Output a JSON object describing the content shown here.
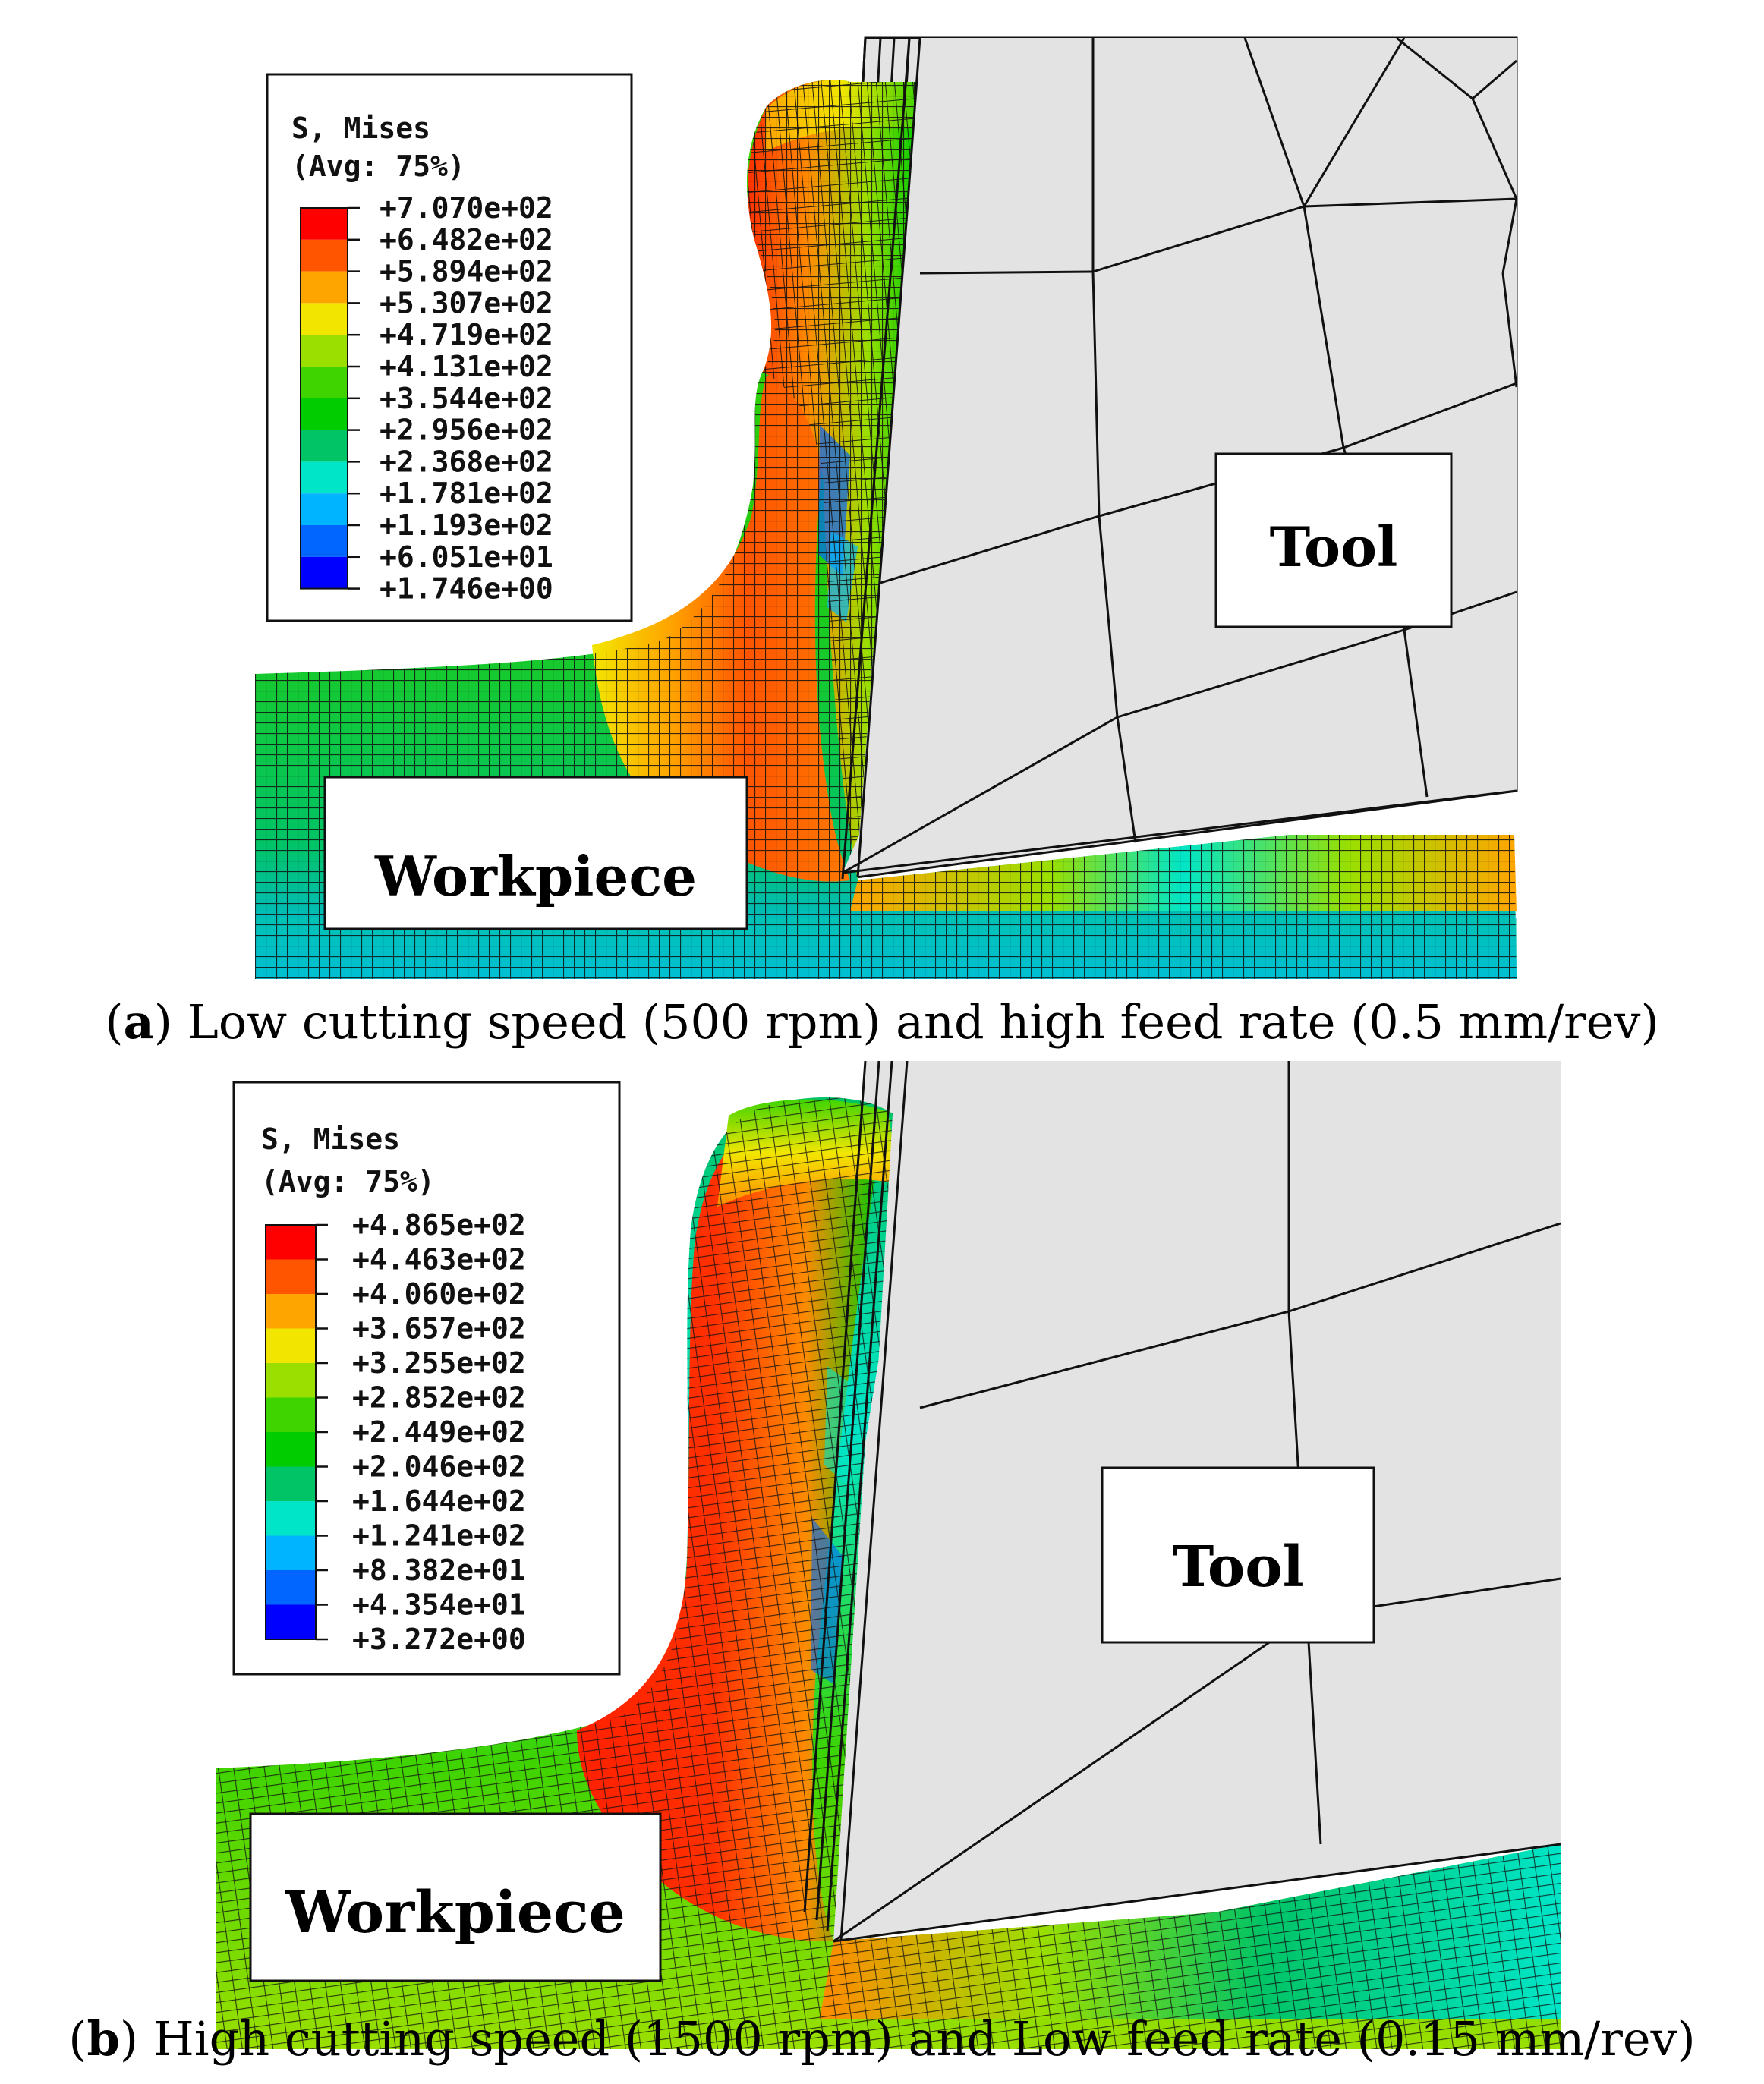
{
  "panels": [
    {
      "id": "a",
      "legend": {
        "title_line1": "S, Mises",
        "title_line2": "(Avg: 75%)",
        "values": [
          "+7.070e+02",
          "+6.482e+02",
          "+5.894e+02",
          "+5.307e+02",
          "+4.719e+02",
          "+4.131e+02",
          "+3.544e+02",
          "+2.956e+02",
          "+2.368e+02",
          "+1.781e+02",
          "+1.193e+02",
          "+6.051e+01",
          "+1.746e+00"
        ]
      },
      "tool_label": "Tool",
      "workpiece_label": "Workpiece",
      "caption_letter": "a",
      "caption_text": " Low cutting speed (500 rpm) and high feed rate (0.5 mm/rev)"
    },
    {
      "id": "b",
      "legend": {
        "title_line1": "S, Mises",
        "title_line2": "(Avg: 75%)",
        "values": [
          "+4.865e+02",
          "+4.463e+02",
          "+4.060e+02",
          "+3.657e+02",
          "+3.255e+02",
          "+2.852e+02",
          "+2.449e+02",
          "+2.046e+02",
          "+1.644e+02",
          "+1.241e+02",
          "+8.382e+01",
          "+4.354e+01",
          "+3.272e+00"
        ]
      },
      "tool_label": "Tool",
      "workpiece_label": "Workpiece",
      "caption_letter": "b",
      "caption_text": " High cutting speed (1500 rpm) and Low feed rate (0.15 mm/rev)"
    }
  ],
  "colorbar": [
    "#ff0000",
    "#ff5400",
    "#ffa500",
    "#f2e600",
    "#9adf00",
    "#3fd400",
    "#00cc00",
    "#00c466",
    "#00e5c8",
    "#00b4ff",
    "#0066ff",
    "#0000ff"
  ],
  "colors": {
    "tool_fill": "#e3e3e3",
    "mesh_line": "#111111"
  }
}
